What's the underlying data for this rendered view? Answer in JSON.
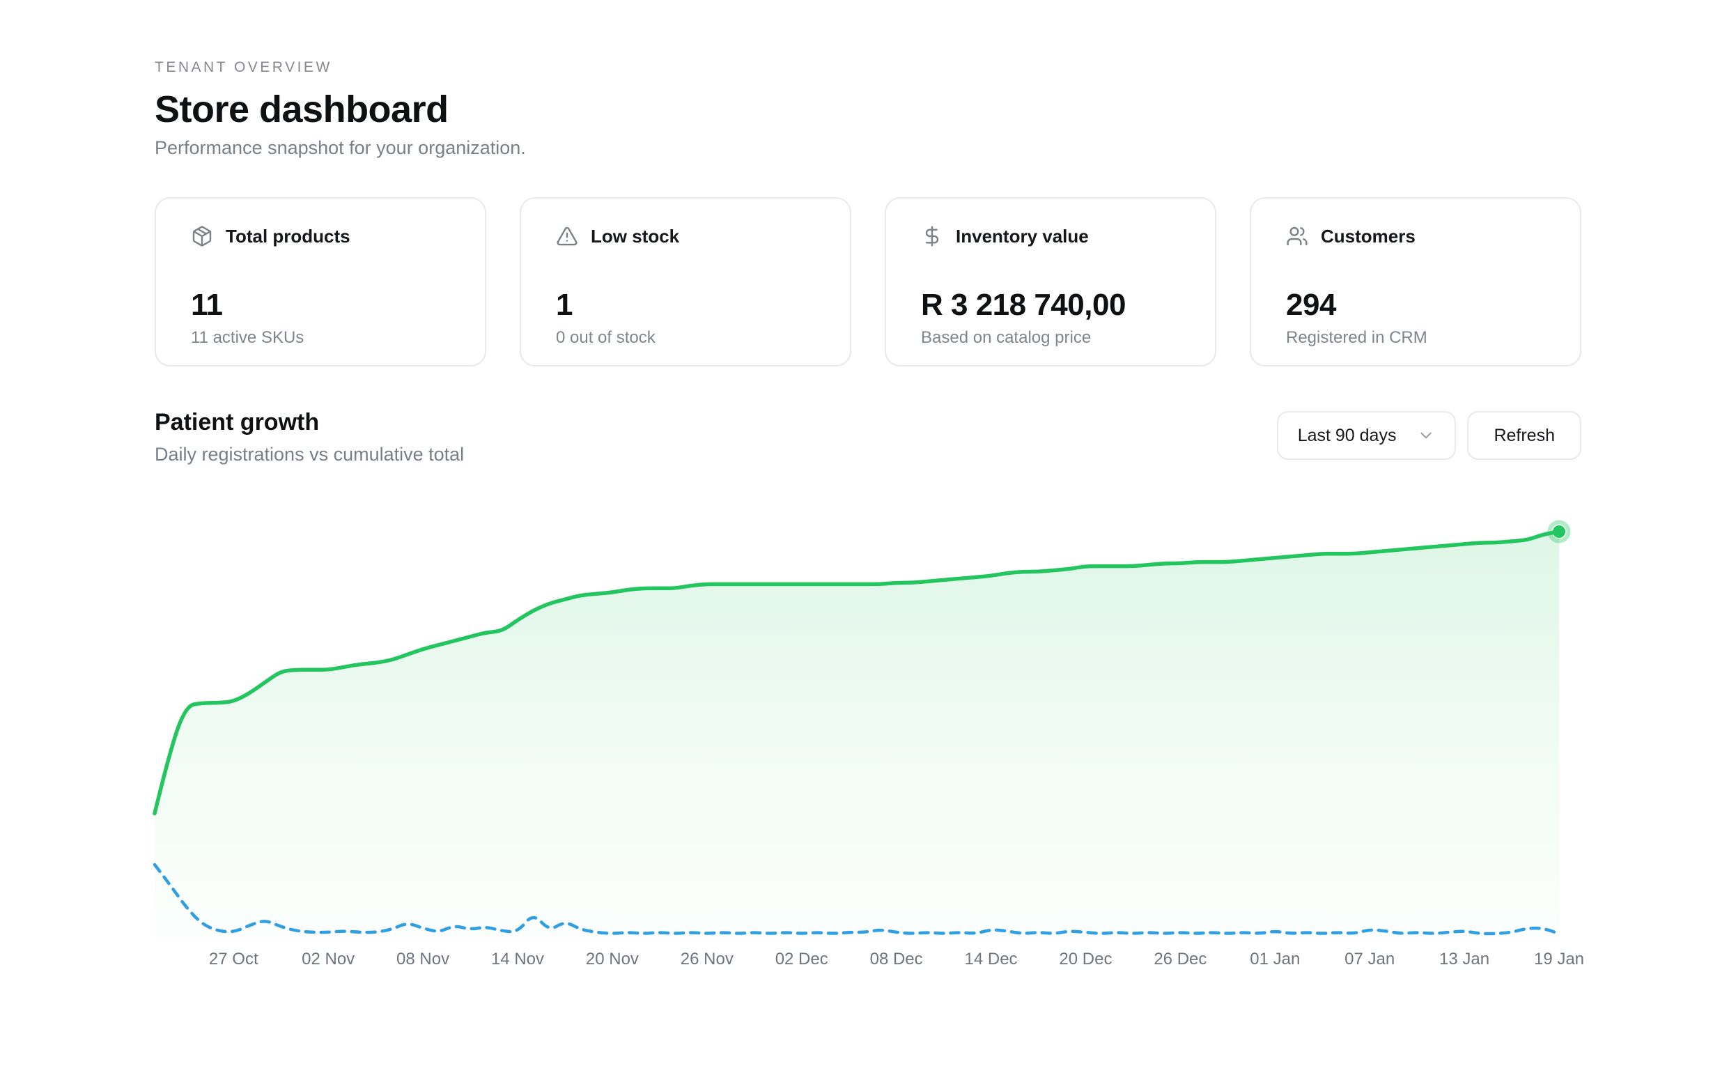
{
  "page": {
    "eyebrow": "TENANT OVERVIEW",
    "title": "Store dashboard",
    "subtitle": "Performance snapshot for your organization."
  },
  "cards": [
    {
      "icon": "package",
      "label": "Total products",
      "value": "11",
      "sub": "11 active SKUs"
    },
    {
      "icon": "alert-triangle",
      "label": "Low stock",
      "value": "1",
      "sub": "0 out of stock"
    },
    {
      "icon": "dollar-sign",
      "label": "Inventory value",
      "value": "R 3 218 740,00",
      "sub": "Based on catalog price"
    },
    {
      "icon": "users",
      "label": "Customers",
      "value": "294",
      "sub": "Registered in CRM"
    }
  ],
  "section": {
    "title": "Patient growth",
    "subtitle": "Daily registrations vs cumulative total",
    "range_label": "Last 90 days",
    "refresh_label": "Refresh"
  },
  "colors": {
    "green": "#22c55e",
    "green_halo": "rgba(34,197,94,0.35)",
    "area_top": "rgba(34,197,94,0.15)",
    "area_mid": "rgba(34,197,94,0.06)",
    "area_bottom": "rgba(34,197,94,0.015)",
    "blue": "#2f9fe1"
  },
  "chart_data": {
    "type": "area",
    "title": "Patient growth",
    "xlabel": "",
    "ylabel": "",
    "grid": false,
    "legend": "none",
    "days": 90,
    "ylim": [
      0,
      294
    ],
    "x_tick_days": [
      5,
      11,
      17,
      23,
      29,
      35,
      41,
      47,
      53,
      59,
      65,
      71,
      77,
      83,
      89
    ],
    "x_tick_labels": [
      "27 Oct",
      "02 Nov",
      "08 Nov",
      "14 Nov",
      "20 Nov",
      "26 Nov",
      "02 Dec",
      "08 Dec",
      "14 Dec",
      "20 Dec",
      "26 Dec",
      "01 Jan",
      "07 Jan",
      "13 Jan",
      "19 Jan"
    ],
    "series": [
      {
        "name": "Cumulative total",
        "style": "solid",
        "color": "#22c55e",
        "values": [
          90,
          137,
          168,
          170,
          170,
          171,
          177,
          185,
          193,
          194,
          194,
          194,
          196,
          198,
          199,
          201,
          205,
          209,
          212,
          215,
          218,
          221,
          222,
          230,
          237,
          242,
          245,
          248,
          249,
          250,
          252,
          253,
          253,
          253,
          255,
          256,
          256,
          256,
          256,
          256,
          256,
          256,
          256,
          256,
          256,
          256,
          256,
          257,
          257,
          258,
          259,
          260,
          261,
          262,
          264,
          265,
          265,
          266,
          267,
          269,
          269,
          269,
          269,
          270,
          271,
          271,
          272,
          272,
          272,
          273,
          274,
          275,
          276,
          277,
          278,
          278,
          278,
          279,
          280,
          281,
          282,
          283,
          284,
          285,
          286,
          286,
          287,
          288,
          292,
          294
        ]
      },
      {
        "name": "Daily registrations",
        "style": "dashed",
        "color": "#2f9fe1",
        "values": [
          53,
          38,
          22,
          10,
          5,
          4,
          9,
          13,
          8,
          5,
          4,
          4,
          5,
          4,
          4,
          6,
          11,
          7,
          4,
          9,
          6,
          8,
          5,
          4,
          18,
          5,
          12,
          6,
          4,
          3,
          4,
          3,
          4,
          3,
          4,
          3,
          4,
          3,
          4,
          3,
          4,
          3,
          4,
          3,
          4,
          4,
          6,
          4,
          3,
          4,
          3,
          4,
          3,
          6,
          5,
          3,
          4,
          3,
          5,
          4,
          3,
          4,
          3,
          4,
          3,
          4,
          3,
          4,
          3,
          4,
          3,
          5,
          3,
          4,
          3,
          4,
          3,
          6,
          5,
          3,
          4,
          3,
          4,
          5,
          3,
          3,
          4,
          7,
          7,
          3
        ]
      }
    ]
  }
}
